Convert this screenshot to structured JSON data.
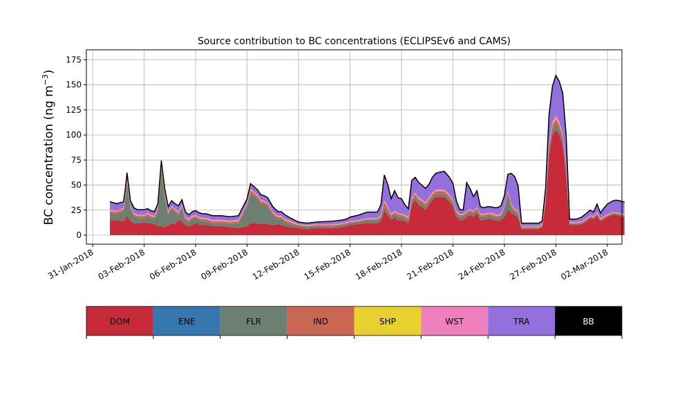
{
  "chart_data": {
    "type": "area",
    "title": "Source contribution to BC concentrations (ECLIPSEv6 and CAMS)",
    "ylabel": "BC concentration (ng m",
    "ylabel_sup": "−3",
    "ylabel_close": ")",
    "xlabel": "",
    "x_start": "2018-01-30",
    "x_end": "2018-03-02",
    "ylim": [
      -9,
      185
    ],
    "yticks": [
      0,
      25,
      50,
      75,
      100,
      125,
      150,
      175
    ],
    "xtick_labels": [
      "31-Jan-2018",
      "03-Feb-2018",
      "06-Feb-2018",
      "09-Feb-2018",
      "12-Feb-2018",
      "15-Feb-2018",
      "18-Feb-2018",
      "21-Feb-2018",
      "24-Feb-2018",
      "27-Feb-2018",
      "02-Mar-2018"
    ],
    "xtick_days": [
      1,
      4,
      7,
      10,
      13,
      16,
      19,
      22,
      25,
      28,
      31
    ],
    "grid": true,
    "stack_order": [
      "DOM",
      "FLR",
      "IND",
      "SHP",
      "WST",
      "TRA"
    ],
    "x": [
      2.0,
      2.4,
      2.8,
      2.9,
      3.0,
      3.2,
      3.4,
      3.6,
      3.8,
      4.0,
      4.2,
      4.4,
      4.6,
      4.8,
      5.0,
      5.2,
      5.4,
      5.6,
      5.8,
      6.0,
      6.2,
      6.4,
      6.6,
      6.8,
      7.0,
      7.2,
      7.4,
      7.6,
      8.0,
      8.5,
      9.0,
      9.5,
      10.0,
      10.2,
      10.4,
      10.6,
      10.8,
      11.0,
      11.2,
      11.5,
      11.8,
      12.0,
      12.2,
      12.5,
      13.0,
      13.5,
      14.0,
      15.0,
      15.5,
      15.8,
      16.0,
      16.5,
      17.0,
      17.4,
      17.6,
      17.8,
      18.0,
      18.2,
      18.4,
      18.6,
      18.8,
      19.0,
      19.2,
      19.4,
      19.6,
      19.8,
      20.0,
      20.2,
      20.4,
      20.6,
      20.8,
      21.0,
      21.2,
      21.5,
      21.8,
      22.0,
      22.2,
      22.4,
      22.6,
      22.8,
      23.0,
      23.2,
      23.4,
      23.6,
      23.8,
      24.0,
      24.2,
      24.4,
      24.6,
      24.8,
      25.0,
      25.2,
      25.4,
      25.6,
      25.8,
      26.0,
      26.5,
      27.0,
      27.2,
      27.4,
      27.6,
      27.8,
      28.0,
      28.2,
      28.4,
      28.6,
      28.8,
      29.0,
      29.2,
      29.5,
      29.8,
      30.0,
      30.2,
      30.4,
      30.6,
      30.8,
      31.0,
      31.3,
      31.5,
      31.8,
      32.0
    ],
    "series": [
      {
        "name": "DOM",
        "color": "#C72A39",
        "values": [
          15,
          15,
          14,
          16,
          20,
          14,
          12,
          12,
          12,
          13,
          12,
          12,
          11,
          9,
          9,
          8,
          10,
          12,
          11,
          15,
          14,
          10,
          9,
          10,
          12,
          11,
          10,
          10,
          9,
          9,
          8,
          7,
          9,
          12,
          12,
          12,
          11,
          11,
          11,
          10,
          11,
          10,
          9,
          8,
          7,
          6,
          7,
          7,
          8,
          9,
          10,
          11,
          12,
          12,
          12,
          14,
          25,
          20,
          15,
          18,
          15,
          15,
          14,
          12,
          30,
          35,
          30,
          28,
          25,
          30,
          35,
          38,
          38,
          38,
          33,
          28,
          18,
          15,
          15,
          18,
          20,
          18,
          22,
          15,
          15,
          16,
          16,
          15,
          14,
          15,
          18,
          25,
          22,
          20,
          18,
          6,
          6,
          6,
          8,
          30,
          80,
          100,
          105,
          100,
          90,
          60,
          10,
          10,
          10,
          11,
          14,
          17,
          16,
          20,
          14,
          16,
          18,
          20,
          20,
          19,
          18
        ]
      },
      {
        "name": "FLR",
        "color": "#6D7F70",
        "values": [
          7,
          6,
          10,
          20,
          32,
          12,
          7,
          5,
          5,
          4,
          7,
          5,
          5,
          15,
          55,
          30,
          10,
          14,
          12,
          5,
          13,
          5,
          4,
          6,
          5,
          4,
          4,
          4,
          3,
          3,
          3,
          5,
          20,
          30,
          27,
          24,
          20,
          20,
          18,
          10,
          5,
          6,
          4,
          3,
          2,
          2,
          2,
          2,
          2,
          2,
          2,
          2,
          3,
          3,
          3,
          3,
          3,
          3,
          3,
          3,
          4,
          3,
          3,
          3,
          3,
          3,
          3,
          3,
          3,
          3,
          3,
          3,
          3,
          3,
          3,
          3,
          3,
          3,
          3,
          3,
          3,
          3,
          3,
          3,
          3,
          3,
          3,
          3,
          3,
          3,
          8,
          15,
          5,
          3,
          3,
          1,
          1,
          1,
          1,
          3,
          5,
          5,
          6,
          5,
          5,
          5,
          1,
          1,
          1,
          1,
          1,
          1,
          1,
          1,
          1,
          1,
          1,
          1,
          1,
          1,
          1
        ]
      },
      {
        "name": "IND",
        "color": "#C96654",
        "values": [
          2,
          2,
          2,
          3,
          3,
          2,
          2,
          2,
          2,
          2,
          2,
          2,
          2,
          2,
          4,
          3,
          2,
          2,
          2,
          2,
          2,
          2,
          2,
          2,
          2,
          2,
          2,
          2,
          2,
          2,
          2,
          2,
          2,
          3,
          3,
          3,
          3,
          2,
          2,
          2,
          2,
          2,
          2,
          2,
          1,
          1,
          1,
          1,
          1,
          1,
          1,
          1,
          1,
          1,
          1,
          2,
          5,
          4,
          2,
          2,
          2,
          2,
          2,
          2,
          3,
          3,
          3,
          3,
          3,
          3,
          3,
          3,
          3,
          3,
          3,
          3,
          2,
          2,
          2,
          2,
          2,
          2,
          2,
          2,
          2,
          2,
          2,
          2,
          2,
          2,
          2,
          3,
          3,
          2,
          2,
          1,
          1,
          1,
          1,
          2,
          4,
          5,
          5,
          5,
          4,
          3,
          1,
          1,
          1,
          1,
          1,
          1,
          1,
          1,
          1,
          1,
          1,
          1,
          1,
          1,
          1
        ]
      },
      {
        "name": "SHP",
        "color": "#E8D030",
        "values": [
          0.4,
          0.4,
          0.4,
          0.4,
          0.4,
          0.4,
          0.4,
          0.4,
          0.4,
          0.4,
          0.4,
          0.4,
          0.4,
          0.4,
          0.4,
          0.4,
          0.4,
          0.4,
          0.4,
          0.4,
          0.4,
          0.4,
          0.4,
          0.4,
          0.4,
          0.4,
          0.4,
          0.4,
          0.4,
          0.4,
          0.4,
          0.4,
          0.4,
          0.4,
          0.4,
          0.4,
          0.4,
          0.4,
          0.4,
          0.4,
          0.4,
          0.4,
          0.4,
          0.4,
          0.3,
          0.3,
          0.3,
          0.3,
          0.3,
          0.3,
          0.3,
          0.3,
          0.3,
          0.3,
          0.3,
          0.4,
          0.6,
          0.5,
          0.4,
          0.4,
          0.4,
          0.4,
          0.4,
          0.4,
          0.5,
          0.5,
          0.5,
          0.5,
          0.5,
          0.5,
          0.5,
          0.5,
          0.5,
          0.5,
          0.5,
          0.5,
          0.4,
          0.4,
          0.4,
          0.4,
          0.4,
          0.4,
          0.4,
          0.4,
          0.4,
          0.4,
          0.4,
          0.4,
          0.4,
          0.4,
          0.4,
          0.5,
          0.5,
          0.4,
          0.4,
          0.3,
          0.3,
          0.3,
          0.3,
          0.4,
          0.8,
          1.0,
          1.0,
          1.0,
          0.9,
          0.6,
          0.3,
          0.3,
          0.3,
          0.3,
          0.3,
          0.3,
          0.3,
          0.3,
          0.3,
          0.3,
          0.3,
          0.3,
          0.3,
          0.3,
          0.3
        ]
      },
      {
        "name": "WST",
        "color": "#F07FBD",
        "values": [
          1,
          1,
          1,
          1,
          1,
          1,
          1,
          1,
          1,
          1,
          1,
          1,
          1,
          1,
          1,
          1,
          1,
          1,
          1,
          1,
          1,
          1,
          1,
          1,
          1,
          1,
          1,
          1,
          1,
          1,
          1,
          1,
          1,
          1,
          1,
          1,
          1,
          1,
          1,
          1,
          1,
          1,
          1,
          1,
          0.7,
          0.7,
          0.7,
          0.7,
          0.7,
          0.7,
          0.7,
          0.7,
          0.7,
          0.7,
          0.7,
          1,
          1.5,
          1.2,
          1,
          1,
          1,
          1,
          1,
          1,
          1.2,
          1.2,
          1.2,
          1.2,
          1.2,
          1.2,
          1.2,
          1.2,
          1.2,
          1.2,
          1.2,
          1.2,
          1,
          1,
          1,
          1,
          1,
          1,
          1,
          1,
          1,
          1,
          1,
          1,
          1,
          1,
          1,
          1.2,
          1.2,
          1,
          1,
          0.7,
          0.7,
          0.7,
          0.7,
          1,
          2,
          2.5,
          2.5,
          2.5,
          2,
          1.5,
          0.7,
          0.7,
          0.7,
          0.7,
          0.7,
          0.7,
          0.7,
          0.7,
          0.7,
          0.7,
          0.7,
          0.7,
          0.7,
          0.7,
          0.7
        ]
      },
      {
        "name": "TRA",
        "color": "#9370DB",
        "values": [
          8,
          7,
          6,
          6,
          6,
          5,
          5,
          5,
          5,
          5,
          4,
          4,
          4,
          4,
          5,
          4,
          5,
          5,
          5,
          6,
          5,
          5,
          4,
          4,
          4,
          4,
          4,
          4,
          4,
          4,
          4,
          4,
          4,
          5,
          5,
          5,
          5,
          5,
          5,
          5,
          4,
          4,
          4,
          3,
          2,
          2,
          2,
          3,
          3,
          3,
          4,
          5,
          6,
          6,
          6,
          10,
          25,
          22,
          15,
          20,
          15,
          15,
          10,
          8,
          17,
          15,
          15,
          14,
          14,
          13,
          15,
          16,
          17,
          18,
          17,
          16,
          10,
          4,
          4,
          28,
          20,
          14,
          16,
          7,
          6,
          6,
          6,
          6,
          7,
          8,
          10,
          16,
          30,
          32,
          25,
          3,
          3,
          3,
          3,
          10,
          28,
          35,
          40,
          40,
          40,
          30,
          3,
          3,
          3,
          4,
          5,
          5,
          4,
          8,
          5,
          8,
          10,
          11,
          12,
          12,
          12
        ]
      }
    ]
  },
  "legend": {
    "items": [
      {
        "label": "DOM",
        "color": "#C72A39",
        "text_color": "#000000"
      },
      {
        "label": "ENE",
        "color": "#3777B0",
        "text_color": "#000000"
      },
      {
        "label": "FLR",
        "color": "#6D7F70",
        "text_color": "#000000"
      },
      {
        "label": "IND",
        "color": "#C96654",
        "text_color": "#000000"
      },
      {
        "label": "SHP",
        "color": "#E8D030",
        "text_color": "#000000"
      },
      {
        "label": "WST",
        "color": "#F07FBD",
        "text_color": "#000000"
      },
      {
        "label": "TRA",
        "color": "#9370DB",
        "text_color": "#000000"
      },
      {
        "label": "BB",
        "color": "#000000",
        "text_color": "#ffffff"
      }
    ]
  }
}
